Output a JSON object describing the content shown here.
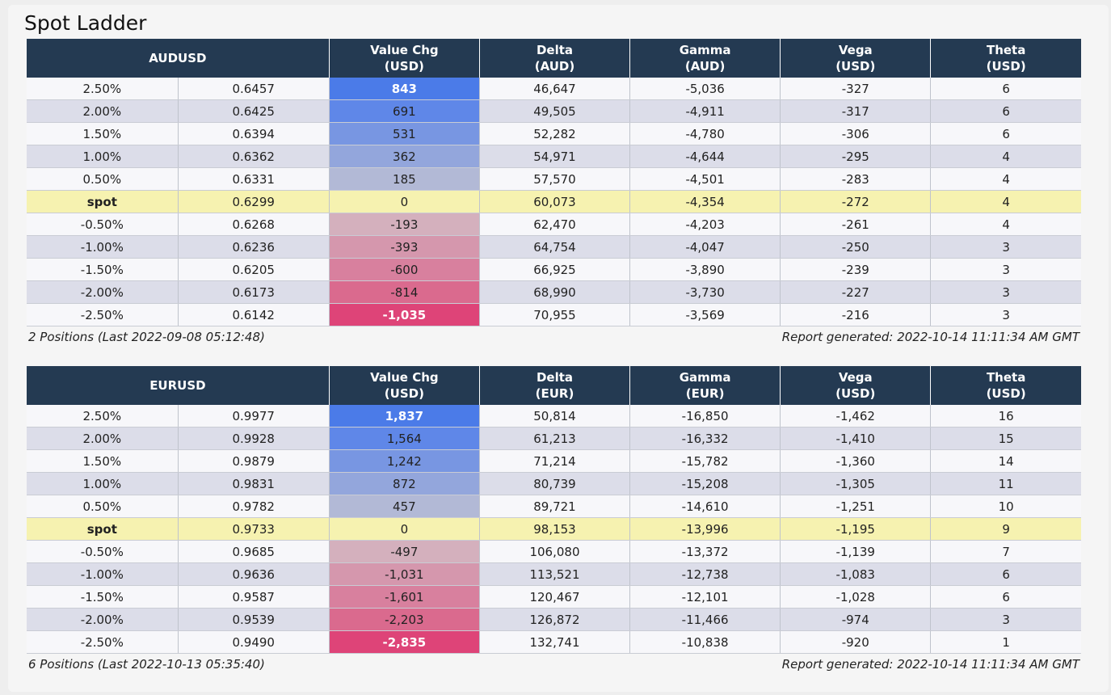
{
  "title": "Spot Ladder",
  "colors": {
    "header_bg": "#243a52",
    "spot_row_bg": "#f6f2b0",
    "positive_strong": "#4b7be8",
    "negative_strong": "#de4478"
  },
  "ladders": [
    {
      "pair": "AUDUSD",
      "headers": {
        "value_chg": [
          "Value Chg",
          "(USD)"
        ],
        "delta": [
          "Delta",
          "(AUD)"
        ],
        "gamma": [
          "Gamma",
          "(AUD)"
        ],
        "vega": [
          "Vega",
          "(USD)"
        ],
        "theta": [
          "Theta",
          "(USD)"
        ]
      },
      "rows": [
        {
          "shift": "2.50%",
          "spot": "0.6457",
          "value_chg": "843",
          "delta": "46,647",
          "gamma": "-5,036",
          "vega": "-327",
          "theta": "6",
          "cell_color": "#4b7be8",
          "strong": true
        },
        {
          "shift": "2.00%",
          "spot": "0.6425",
          "value_chg": "691",
          "delta": "49,505",
          "gamma": "-4,911",
          "vega": "-317",
          "theta": "6",
          "cell_color": "#5f87e8",
          "strong": false
        },
        {
          "shift": "1.50%",
          "spot": "0.6394",
          "value_chg": "531",
          "delta": "52,282",
          "gamma": "-4,780",
          "vega": "-306",
          "theta": "6",
          "cell_color": "#7896e2",
          "strong": false
        },
        {
          "shift": "1.00%",
          "spot": "0.6362",
          "value_chg": "362",
          "delta": "54,971",
          "gamma": "-4,644",
          "vega": "-295",
          "theta": "4",
          "cell_color": "#93a6dc",
          "strong": false
        },
        {
          "shift": "0.50%",
          "spot": "0.6331",
          "value_chg": "185",
          "delta": "57,570",
          "gamma": "-4,501",
          "vega": "-283",
          "theta": "4",
          "cell_color": "#b2b9d6",
          "strong": false
        },
        {
          "shift": "spot",
          "spot": "0.6299",
          "value_chg": "0",
          "delta": "60,073",
          "gamma": "-4,354",
          "vega": "-272",
          "theta": "4",
          "cell_color": "#f6f2b0",
          "strong": false,
          "is_spot": true
        },
        {
          "shift": "-0.50%",
          "spot": "0.6268",
          "value_chg": "-193",
          "delta": "62,470",
          "gamma": "-4,203",
          "vega": "-261",
          "theta": "4",
          "cell_color": "#d4b0bd",
          "strong": false
        },
        {
          "shift": "-1.00%",
          "spot": "0.6236",
          "value_chg": "-393",
          "delta": "64,754",
          "gamma": "-4,047",
          "vega": "-250",
          "theta": "3",
          "cell_color": "#d597ad",
          "strong": false
        },
        {
          "shift": "-1.50%",
          "spot": "0.6205",
          "value_chg": "-600",
          "delta": "66,925",
          "gamma": "-3,890",
          "vega": "-239",
          "theta": "3",
          "cell_color": "#d8809e",
          "strong": false
        },
        {
          "shift": "-2.00%",
          "spot": "0.6173",
          "value_chg": "-814",
          "delta": "68,990",
          "gamma": "-3,730",
          "vega": "-227",
          "theta": "3",
          "cell_color": "#da6a8e",
          "strong": false
        },
        {
          "shift": "-2.50%",
          "spot": "0.6142",
          "value_chg": "-1,035",
          "delta": "70,955",
          "gamma": "-3,569",
          "vega": "-216",
          "theta": "3",
          "cell_color": "#de4478",
          "strong": true
        }
      ],
      "footer_left": "2 Positions (Last 2022-09-08 05:12:48)",
      "footer_right": "Report generated: 2022-10-14 11:11:34 AM GMT"
    },
    {
      "pair": "EURUSD",
      "headers": {
        "value_chg": [
          "Value Chg",
          "(USD)"
        ],
        "delta": [
          "Delta",
          "(EUR)"
        ],
        "gamma": [
          "Gamma",
          "(EUR)"
        ],
        "vega": [
          "Vega",
          "(USD)"
        ],
        "theta": [
          "Theta",
          "(USD)"
        ]
      },
      "rows": [
        {
          "shift": "2.50%",
          "spot": "0.9977",
          "value_chg": "1,837",
          "delta": "50,814",
          "gamma": "-16,850",
          "vega": "-1,462",
          "theta": "16",
          "cell_color": "#4b7be8",
          "strong": true
        },
        {
          "shift": "2.00%",
          "spot": "0.9928",
          "value_chg": "1,564",
          "delta": "61,213",
          "gamma": "-16,332",
          "vega": "-1,410",
          "theta": "15",
          "cell_color": "#5f87e8",
          "strong": false
        },
        {
          "shift": "1.50%",
          "spot": "0.9879",
          "value_chg": "1,242",
          "delta": "71,214",
          "gamma": "-15,782",
          "vega": "-1,360",
          "theta": "14",
          "cell_color": "#7896e2",
          "strong": false
        },
        {
          "shift": "1.00%",
          "spot": "0.9831",
          "value_chg": "872",
          "delta": "80,739",
          "gamma": "-15,208",
          "vega": "-1,305",
          "theta": "11",
          "cell_color": "#93a6dc",
          "strong": false
        },
        {
          "shift": "0.50%",
          "spot": "0.9782",
          "value_chg": "457",
          "delta": "89,721",
          "gamma": "-14,610",
          "vega": "-1,251",
          "theta": "10",
          "cell_color": "#b2b9d6",
          "strong": false
        },
        {
          "shift": "spot",
          "spot": "0.9733",
          "value_chg": "0",
          "delta": "98,153",
          "gamma": "-13,996",
          "vega": "-1,195",
          "theta": "9",
          "cell_color": "#f6f2b0",
          "strong": false,
          "is_spot": true
        },
        {
          "shift": "-0.50%",
          "spot": "0.9685",
          "value_chg": "-497",
          "delta": "106,080",
          "gamma": "-13,372",
          "vega": "-1,139",
          "theta": "7",
          "cell_color": "#d4b0bd",
          "strong": false
        },
        {
          "shift": "-1.00%",
          "spot": "0.9636",
          "value_chg": "-1,031",
          "delta": "113,521",
          "gamma": "-12,738",
          "vega": "-1,083",
          "theta": "6",
          "cell_color": "#d597ad",
          "strong": false
        },
        {
          "shift": "-1.50%",
          "spot": "0.9587",
          "value_chg": "-1,601",
          "delta": "120,467",
          "gamma": "-12,101",
          "vega": "-1,028",
          "theta": "6",
          "cell_color": "#d8809e",
          "strong": false
        },
        {
          "shift": "-2.00%",
          "spot": "0.9539",
          "value_chg": "-2,203",
          "delta": "126,872",
          "gamma": "-11,466",
          "vega": "-974",
          "theta": "3",
          "cell_color": "#da6a8e",
          "strong": false
        },
        {
          "shift": "-2.50%",
          "spot": "0.9490",
          "value_chg": "-2,835",
          "delta": "132,741",
          "gamma": "-10,838",
          "vega": "-920",
          "theta": "1",
          "cell_color": "#de4478",
          "strong": true
        }
      ],
      "footer_left": "6 Positions (Last 2022-10-13 05:35:40)",
      "footer_right": "Report generated: 2022-10-14 11:11:34 AM GMT"
    }
  ]
}
